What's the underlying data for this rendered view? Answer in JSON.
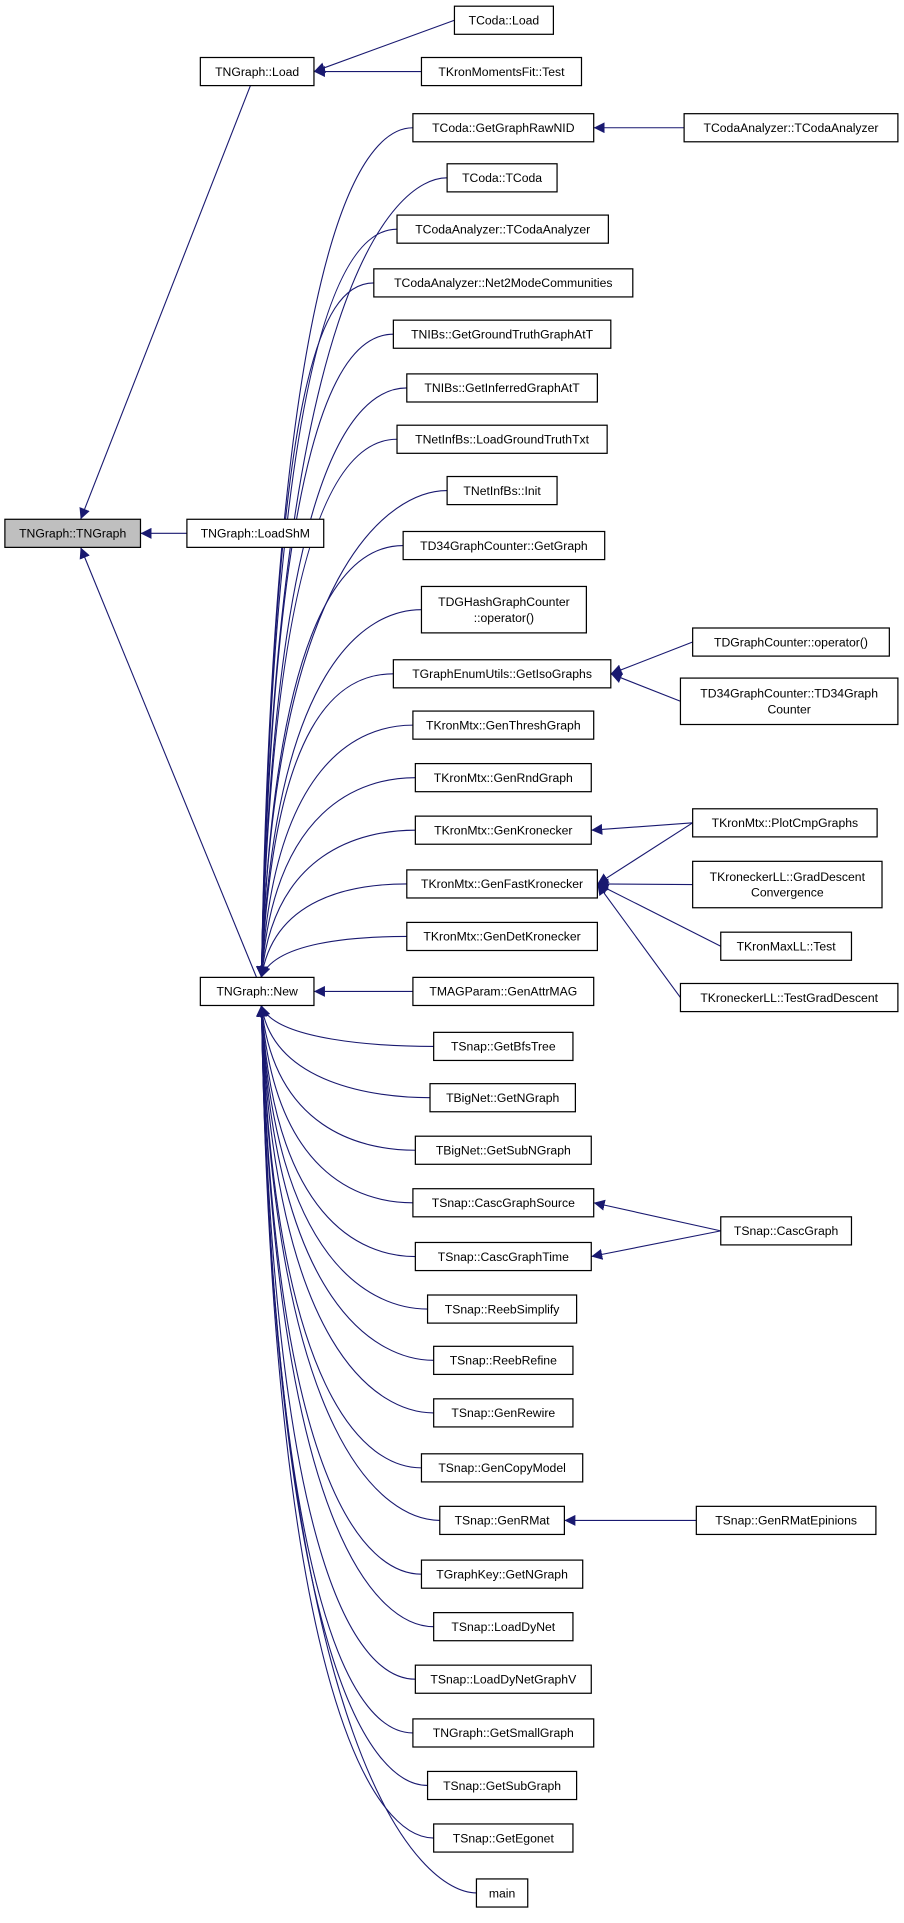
{
  "edge_color": "#191970",
  "root_fill": "#bfbfbf",
  "nodes": [
    {
      "id": "root",
      "label": [
        "TNGraph::TNGraph"
      ]
    },
    {
      "id": "load",
      "label": [
        "TNGraph::Load"
      ]
    },
    {
      "id": "loadshm",
      "label": [
        "TNGraph::LoadShM"
      ]
    },
    {
      "id": "new",
      "label": [
        "TNGraph::New"
      ]
    },
    {
      "id": "tcodaload",
      "label": [
        "TCoda::Load"
      ]
    },
    {
      "id": "kronmom",
      "label": [
        "TKronMomentsFit::Test"
      ]
    },
    {
      "id": "rawnid",
      "label": [
        "TCoda::GetGraphRawNID"
      ]
    },
    {
      "id": "tcoda",
      "label": [
        "TCoda::TCoda"
      ]
    },
    {
      "id": "tca",
      "label": [
        "TCodaAnalyzer::TCodaAnalyzer"
      ]
    },
    {
      "id": "net2",
      "label": [
        "TCodaAnalyzer::Net2ModeCommunities"
      ]
    },
    {
      "id": "gtgat",
      "label": [
        "TNIBs::GetGroundTruthGraphAtT"
      ]
    },
    {
      "id": "igat",
      "label": [
        "TNIBs::GetInferredGraphAtT"
      ]
    },
    {
      "id": "lgtt",
      "label": [
        "TNetInfBs::LoadGroundTruthTxt"
      ]
    },
    {
      "id": "nibinit",
      "label": [
        "TNetInfBs::Init"
      ]
    },
    {
      "id": "td34gg",
      "label": [
        "TD34GraphCounter::GetGraph"
      ]
    },
    {
      "id": "tdgh",
      "label": [
        "TDGHashGraphCounter",
        "::operator()"
      ]
    },
    {
      "id": "iso",
      "label": [
        "TGraphEnumUtils::GetIsoGraphs"
      ]
    },
    {
      "id": "thresh",
      "label": [
        "TKronMtx::GenThreshGraph"
      ]
    },
    {
      "id": "rnd",
      "label": [
        "TKronMtx::GenRndGraph"
      ]
    },
    {
      "id": "genkron",
      "label": [
        "TKronMtx::GenKronecker"
      ]
    },
    {
      "id": "fastkron",
      "label": [
        "TKronMtx::GenFastKronecker"
      ]
    },
    {
      "id": "detkron",
      "label": [
        "TKronMtx::GenDetKronecker"
      ]
    },
    {
      "id": "mag",
      "label": [
        "TMAGParam::GenAttrMAG"
      ]
    },
    {
      "id": "bfs",
      "label": [
        "TSnap::GetBfsTree"
      ]
    },
    {
      "id": "bigng",
      "label": [
        "TBigNet::GetNGraph"
      ]
    },
    {
      "id": "bigsub",
      "label": [
        "TBigNet::GetSubNGraph"
      ]
    },
    {
      "id": "cascsrc",
      "label": [
        "TSnap::CascGraphSource"
      ]
    },
    {
      "id": "casctime",
      "label": [
        "TSnap::CascGraphTime"
      ]
    },
    {
      "id": "reebs",
      "label": [
        "TSnap::ReebSimplify"
      ]
    },
    {
      "id": "reebr",
      "label": [
        "TSnap::ReebRefine"
      ]
    },
    {
      "id": "rewire",
      "label": [
        "TSnap::GenRewire"
      ]
    },
    {
      "id": "copy",
      "label": [
        "TSnap::GenCopyModel"
      ]
    },
    {
      "id": "rmat",
      "label": [
        "TSnap::GenRMat"
      ]
    },
    {
      "id": "gkey",
      "label": [
        "TGraphKey::GetNGraph"
      ]
    },
    {
      "id": "dynet",
      "label": [
        "TSnap::LoadDyNet"
      ]
    },
    {
      "id": "dynetv",
      "label": [
        "TSnap::LoadDyNetGraphV"
      ]
    },
    {
      "id": "small",
      "label": [
        "TNGraph::GetSmallGraph"
      ]
    },
    {
      "id": "subg",
      "label": [
        "TSnap::GetSubGraph"
      ]
    },
    {
      "id": "ego",
      "label": [
        "TSnap::GetEgonet"
      ]
    },
    {
      "id": "main",
      "label": [
        "main"
      ]
    },
    {
      "id": "tca2",
      "label": [
        "TCodaAnalyzer::TCodaAnalyzer"
      ]
    },
    {
      "id": "tdgc",
      "label": [
        "TDGraphCounter::operator()"
      ]
    },
    {
      "id": "td34c",
      "label": [
        "TD34GraphCounter::TD34Graph",
        "Counter"
      ]
    },
    {
      "id": "plot",
      "label": [
        "TKronMtx::PlotCmpGraphs"
      ]
    },
    {
      "id": "grad",
      "label": [
        "TKroneckerLL::GradDescent",
        "Convergence"
      ]
    },
    {
      "id": "maxll",
      "label": [
        "TKronMaxLL::Test"
      ]
    },
    {
      "id": "testgrad",
      "label": [
        "TKroneckerLL::TestGradDescent"
      ]
    },
    {
      "id": "casc",
      "label": [
        "TSnap::CascGraph"
      ]
    },
    {
      "id": "epin",
      "label": [
        "TSnap::GenRMatEpinions"
      ]
    }
  ],
  "edges": [
    [
      "load",
      "root"
    ],
    [
      "loadshm",
      "root"
    ],
    [
      "new",
      "root"
    ],
    [
      "tcodaload",
      "load"
    ],
    [
      "kronmom",
      "load"
    ],
    [
      "rawnid",
      "new"
    ],
    [
      "tcoda",
      "new"
    ],
    [
      "tca",
      "new"
    ],
    [
      "net2",
      "new"
    ],
    [
      "gtgat",
      "new"
    ],
    [
      "igat",
      "new"
    ],
    [
      "lgtt",
      "new"
    ],
    [
      "nibinit",
      "new"
    ],
    [
      "td34gg",
      "new"
    ],
    [
      "tdgh",
      "new"
    ],
    [
      "iso",
      "new"
    ],
    [
      "thresh",
      "new"
    ],
    [
      "rnd",
      "new"
    ],
    [
      "genkron",
      "new"
    ],
    [
      "fastkron",
      "new"
    ],
    [
      "detkron",
      "new"
    ],
    [
      "mag",
      "new"
    ],
    [
      "bfs",
      "new"
    ],
    [
      "bigng",
      "new"
    ],
    [
      "bigsub",
      "new"
    ],
    [
      "cascsrc",
      "new"
    ],
    [
      "casctime",
      "new"
    ],
    [
      "reebs",
      "new"
    ],
    [
      "reebr",
      "new"
    ],
    [
      "rewire",
      "new"
    ],
    [
      "copy",
      "new"
    ],
    [
      "rmat",
      "new"
    ],
    [
      "gkey",
      "new"
    ],
    [
      "dynet",
      "new"
    ],
    [
      "dynetv",
      "new"
    ],
    [
      "small",
      "new"
    ],
    [
      "subg",
      "new"
    ],
    [
      "ego",
      "new"
    ],
    [
      "main",
      "new"
    ],
    [
      "tca2",
      "rawnid"
    ],
    [
      "tdgc",
      "iso"
    ],
    [
      "td34c",
      "iso"
    ],
    [
      "plot",
      "genkron"
    ],
    [
      "plot",
      "fastkron"
    ],
    [
      "grad",
      "fastkron"
    ],
    [
      "maxll",
      "fastkron"
    ],
    [
      "testgrad",
      "fastkron"
    ],
    [
      "casc",
      "cascsrc"
    ],
    [
      "casc",
      "casctime"
    ],
    [
      "epin",
      "rmat"
    ]
  ]
}
